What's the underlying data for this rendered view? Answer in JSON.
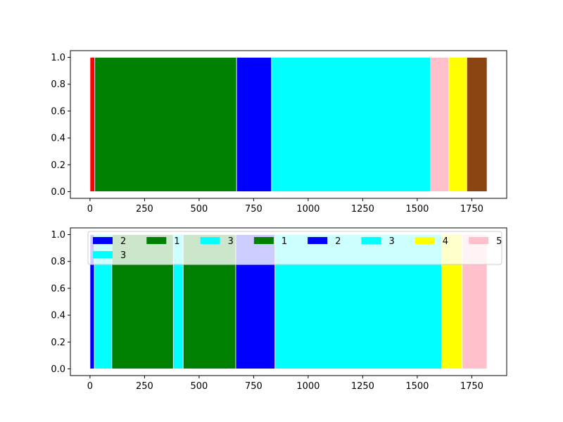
{
  "chart_data": [
    {
      "type": "bar",
      "subtype": "horizontal-span-segments",
      "xlim": [
        -90,
        1910
      ],
      "ylim": [
        -0.05,
        1.05
      ],
      "xticks": [
        0,
        250,
        500,
        750,
        1000,
        1250,
        1500,
        1750
      ],
      "yticks": [
        0.0,
        0.2,
        0.4,
        0.6,
        0.8,
        1.0
      ],
      "legend": null,
      "segments": [
        {
          "start": 0,
          "end": 22,
          "color": "#ff0000"
        },
        {
          "start": 22,
          "end": 672,
          "color": "#008000"
        },
        {
          "start": 672,
          "end": 832,
          "color": "#0000ff"
        },
        {
          "start": 832,
          "end": 1560,
          "color": "#00ffff"
        },
        {
          "start": 1560,
          "end": 1645,
          "color": "#ffc0cb"
        },
        {
          "start": 1645,
          "end": 1727,
          "color": "#ffff00"
        },
        {
          "start": 1727,
          "end": 1820,
          "color": "#8b4513"
        }
      ]
    },
    {
      "type": "bar",
      "subtype": "horizontal-span-segments",
      "xlim": [
        -90,
        1910
      ],
      "ylim": [
        -0.05,
        1.05
      ],
      "xticks": [
        0,
        250,
        500,
        750,
        1000,
        1250,
        1500,
        1750
      ],
      "yticks": [
        0.0,
        0.2,
        0.4,
        0.6,
        0.8,
        1.0
      ],
      "legend_position": "upper",
      "legend_columns": 8,
      "segments": [
        {
          "start": 0,
          "end": 20,
          "color": "#0000ff",
          "label": "2"
        },
        {
          "start": 20,
          "end": 100,
          "color": "#00ffff",
          "label": "3"
        },
        {
          "start": 100,
          "end": 382,
          "color": "#008000",
          "label": "1"
        },
        {
          "start": 382,
          "end": 427,
          "color": "#00ffff",
          "label": "3"
        },
        {
          "start": 427,
          "end": 668,
          "color": "#008000",
          "label": "1"
        },
        {
          "start": 668,
          "end": 848,
          "color": "#0000ff",
          "label": "2"
        },
        {
          "start": 848,
          "end": 1612,
          "color": "#00ffff",
          "label": "3"
        },
        {
          "start": 1612,
          "end": 1706,
          "color": "#ffff00",
          "label": "4"
        },
        {
          "start": 1706,
          "end": 1820,
          "color": "#ffc0cb",
          "label": "5"
        }
      ],
      "legend": [
        {
          "label": "2",
          "color": "#0000ff"
        },
        {
          "label": "1",
          "color": "#008000"
        },
        {
          "label": "3",
          "color": "#00ffff"
        },
        {
          "label": "1",
          "color": "#008000"
        },
        {
          "label": "2",
          "color": "#0000ff"
        },
        {
          "label": "3",
          "color": "#00ffff"
        },
        {
          "label": "4",
          "color": "#ffff00"
        },
        {
          "label": "5",
          "color": "#ffc0cb"
        },
        {
          "label": "3",
          "color": "#00ffff"
        }
      ]
    }
  ]
}
